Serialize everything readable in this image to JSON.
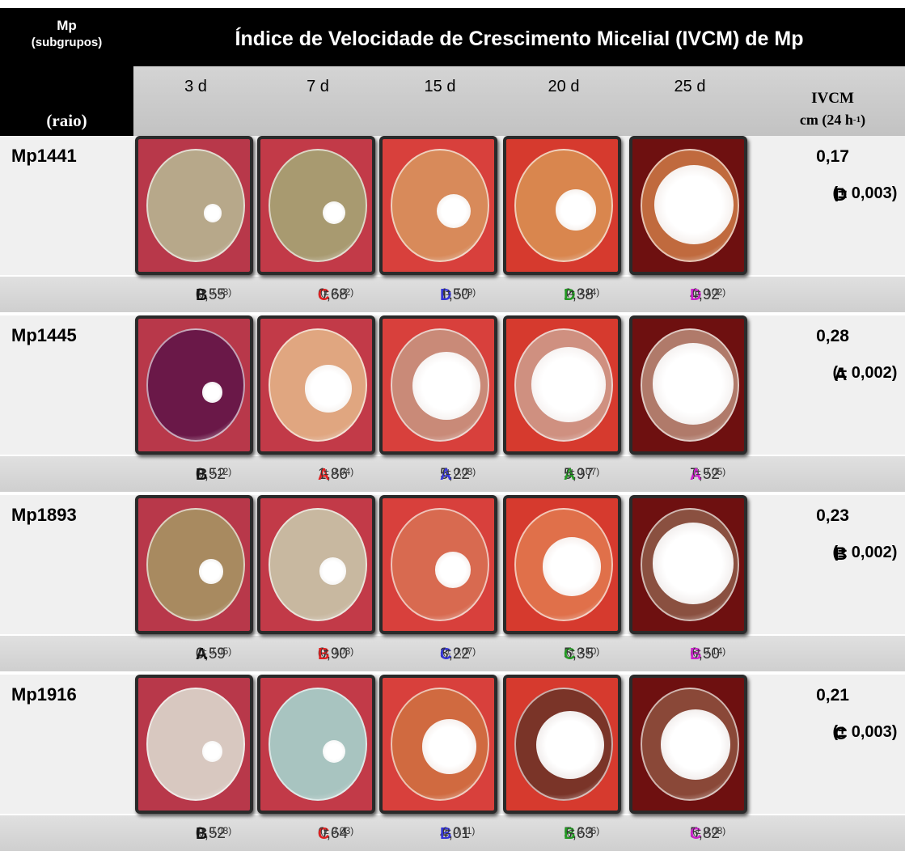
{
  "header": {
    "corner_top": "Mp",
    "corner_sub": "(subgrupos)",
    "corner_bottom": "(raio)",
    "title": "Índice de Velocidade de Crescimento Micelial (IVCM) de Mp",
    "days": [
      "3 d",
      "7 d",
      "15 d",
      "20 d",
      "25 d"
    ],
    "ivcm_label": "IVCM",
    "ivcm_unit": "cm (24 h",
    "ivcm_unit_sup": "-1",
    "ivcm_unit_end": ")"
  },
  "letter_colors": [
    "#111111",
    "#e02020",
    "#3535d8",
    "#239a23",
    "#cc22cc"
  ],
  "rows": [
    {
      "name": "Mp1441",
      "ivcm": "0,17",
      "ivcm_error": "(± 0,003)",
      "ivcm_letter": "D",
      "cells": [
        {
          "value": "0,55",
          "letter": "B",
          "error": "(± 0,08)"
        },
        {
          "value": "0,68",
          "letter": "C",
          "error": "(± 0,02)"
        },
        {
          "value": "1,50",
          "letter": "D",
          "error": "(± 0,09)"
        },
        {
          "value": "2,38",
          "letter": "D",
          "error": "(± 0,14)"
        },
        {
          "value": "4,92",
          "letter": "D",
          "error": "(± 0,02)"
        }
      ]
    },
    {
      "name": "Mp1445",
      "ivcm": "0,28",
      "ivcm_error": "(± 0,002)",
      "ivcm_letter": "A",
      "cells": [
        {
          "value": "0,52",
          "letter": "B",
          "error": "(± 0,12)"
        },
        {
          "value": "1,86",
          "letter": "A",
          "error": "(± 0,04)"
        },
        {
          "value": "5,22",
          "letter": "A",
          "error": "(± 0,03)"
        },
        {
          "value": "5,97",
          "letter": "A",
          "error": "(± 0,07)"
        },
        {
          "value": "7,52",
          "letter": "A",
          "error": "(± 0,05)"
        }
      ]
    },
    {
      "name": "Mp1893",
      "ivcm": "0,23",
      "ivcm_error": "(± 0,002)",
      "ivcm_letter": "B",
      "cells": [
        {
          "value": "0,59",
          "letter": "A",
          "error": "(± 0,05)"
        },
        {
          "value": "0,90",
          "letter": "B",
          "error": "(± 0,03)"
        },
        {
          "value": "3,22",
          "letter": "C",
          "error": "(± 0,07)"
        },
        {
          "value": "5,35",
          "letter": "C",
          "error": "(± 0,10)"
        },
        {
          "value": "6,50",
          "letter": "B",
          "error": "(± 0,14)"
        }
      ]
    },
    {
      "name": "Mp1916",
      "ivcm": "0,21",
      "ivcm_error": "(± 0,003)",
      "ivcm_letter": "C",
      "cells": [
        {
          "value": "0,52",
          "letter": "B",
          "error": "(± 0,03)"
        },
        {
          "value": "0,64",
          "letter": "C",
          "error": "(± 0,03)"
        },
        {
          "value": "4,01",
          "letter": "B",
          "error": "(± 0,11)"
        },
        {
          "value": "5,63",
          "letter": "B",
          "error": "(± 0,06)"
        },
        {
          "value": "5,82",
          "letter": "C",
          "error": "(± 0,08)"
        }
      ]
    }
  ]
}
